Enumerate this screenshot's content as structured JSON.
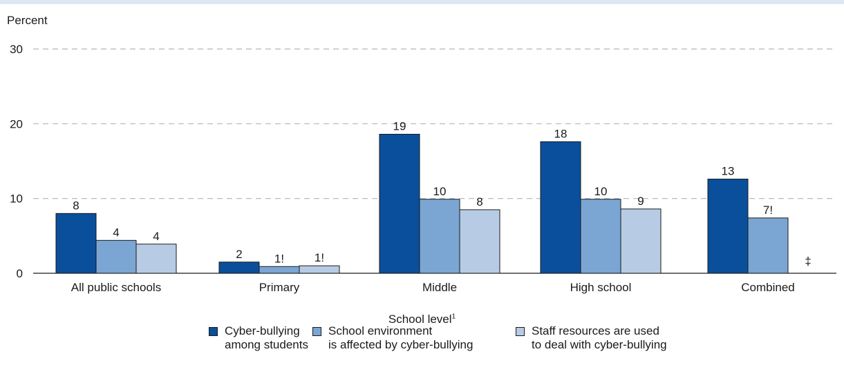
{
  "chart_data": {
    "type": "bar",
    "ylabel": "Percent",
    "xlabel": "School level",
    "xlabel_footnote": "1",
    "ylim": [
      0,
      30
    ],
    "yticks": [
      0,
      10,
      20,
      30
    ],
    "grid": "dashed horizontal",
    "categories": [
      "All public schools",
      "Primary",
      "Middle",
      "High school",
      "Combined"
    ],
    "series": [
      {
        "name_lines": [
          "Cyber-bullying",
          "among students"
        ],
        "color": "#0a4f9c",
        "values": [
          8,
          1.5,
          18.6,
          17.6,
          12.6
        ],
        "labels": [
          "8",
          "2",
          "19",
          "18",
          "13"
        ]
      },
      {
        "name_lines": [
          "School environment",
          "is affected by cyber-bullying"
        ],
        "color": "#7ba6d3",
        "values": [
          4.4,
          0.9,
          9.9,
          9.9,
          7.4
        ],
        "labels": [
          "4",
          "1!",
          "10",
          "10",
          "7!"
        ]
      },
      {
        "name_lines": [
          "Staff resources are used",
          "to deal with cyber-bullying"
        ],
        "color": "#b7cce4",
        "values": [
          3.9,
          1.0,
          8.5,
          8.6,
          null
        ],
        "labels": [
          "4",
          "1!",
          "8",
          "9",
          "‡"
        ]
      }
    ]
  }
}
